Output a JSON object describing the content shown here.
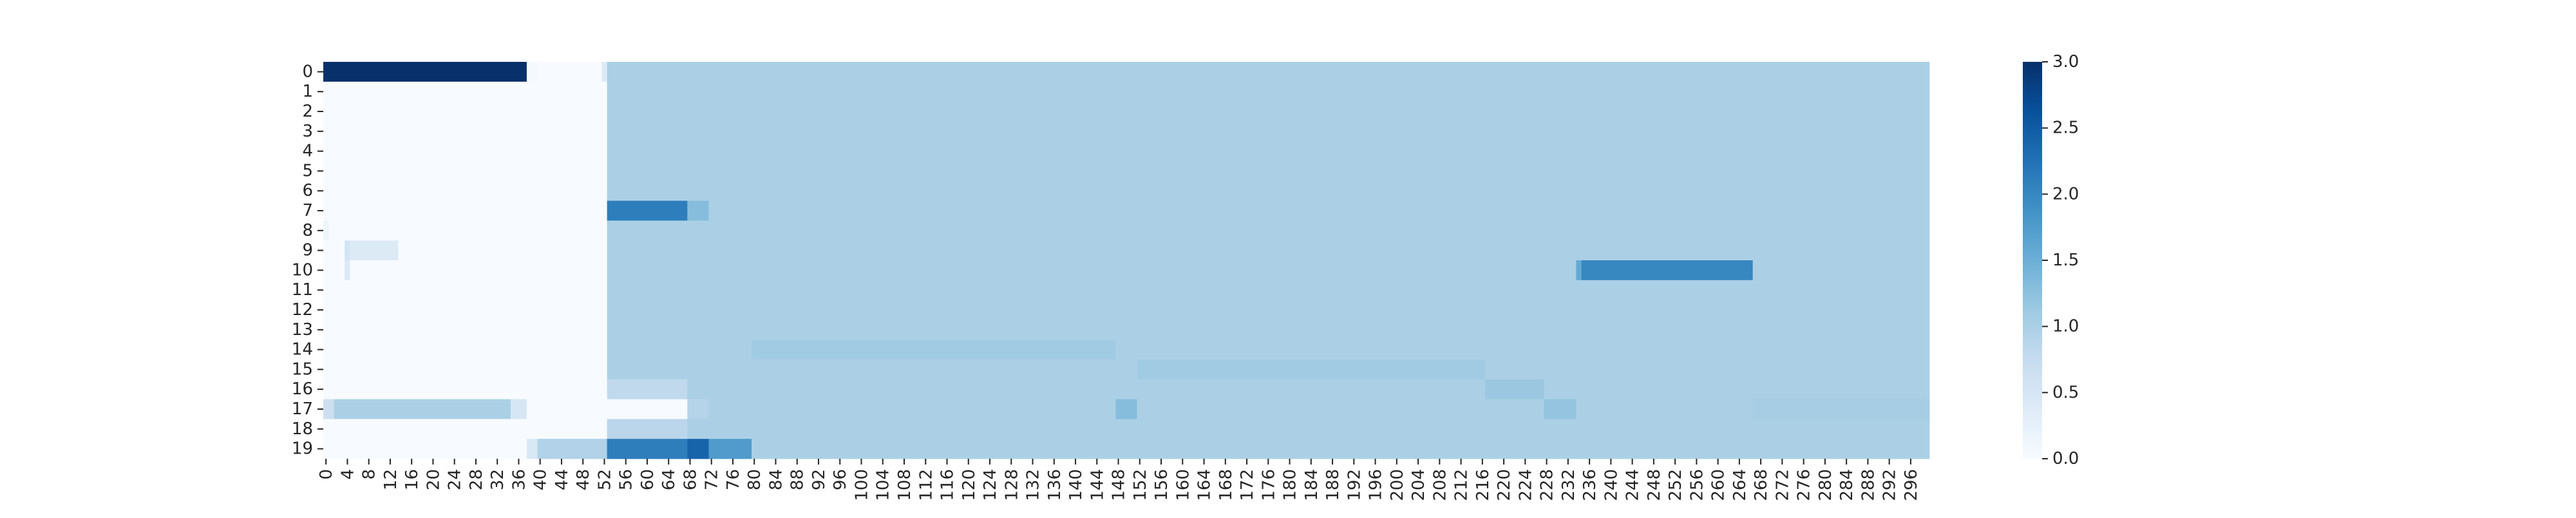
{
  "chart_data": {
    "type": "heatmap",
    "title": "",
    "xlabel": "",
    "ylabel": "",
    "rows": 20,
    "cols": 300,
    "y_tick_labels": [
      "0",
      "1",
      "2",
      "3",
      "4",
      "5",
      "6",
      "7",
      "8",
      "9",
      "10",
      "11",
      "12",
      "13",
      "14",
      "15",
      "16",
      "17",
      "18",
      "19"
    ],
    "x_tick_labels": [
      "0",
      "4",
      "8",
      "12",
      "16",
      "20",
      "24",
      "28",
      "32",
      "36",
      "40",
      "44",
      "48",
      "52",
      "56",
      "60",
      "64",
      "68",
      "72",
      "76",
      "80",
      "84",
      "88",
      "92",
      "96",
      "100",
      "104",
      "108",
      "112",
      "116",
      "120",
      "124",
      "128",
      "132",
      "136",
      "140",
      "144",
      "148",
      "152",
      "156",
      "160",
      "164",
      "168",
      "172",
      "176",
      "180",
      "184",
      "188",
      "192",
      "196",
      "200",
      "204",
      "208",
      "212",
      "216",
      "220",
      "224",
      "228",
      "232",
      "236",
      "240",
      "244",
      "248",
      "252",
      "256",
      "260",
      "264",
      "268",
      "272",
      "276",
      "280",
      "284",
      "288",
      "292",
      "296"
    ],
    "colorbar": {
      "min": 0.0,
      "max": 3.0,
      "tick_labels": [
        "0.0",
        "0.5",
        "1.0",
        "1.5",
        "2.0",
        "2.5",
        "3.0"
      ],
      "tick_values": [
        0.0,
        0.5,
        1.0,
        1.5,
        2.0,
        2.5,
        3.0
      ],
      "colormap": "Blues",
      "color_stops": [
        "#f7fbff",
        "#deebf7",
        "#c6dbef",
        "#9ecae1",
        "#6baed6",
        "#4292c6",
        "#2171b5",
        "#08519c",
        "#08306b"
      ]
    },
    "background_value": 1.0,
    "regions": [
      {
        "rows": [
          0,
          19
        ],
        "cols": [
          0,
          52
        ],
        "value": 0.0
      },
      {
        "rows": [
          0,
          0
        ],
        "cols": [
          0,
          37
        ],
        "value": 3.0
      },
      {
        "rows": [
          0,
          0
        ],
        "cols": [
          38,
          39
        ],
        "value": 0.05
      },
      {
        "rows": [
          0,
          0
        ],
        "cols": [
          52,
          52
        ],
        "value": 0.4
      },
      {
        "rows": [
          7,
          7
        ],
        "cols": [
          53,
          67
        ],
        "value": 2.1
      },
      {
        "rows": [
          7,
          7
        ],
        "cols": [
          68,
          71
        ],
        "value": 1.3
      },
      {
        "rows": [
          8,
          8
        ],
        "cols": [
          0,
          0
        ],
        "value": 0.15
      },
      {
        "rows": [
          9,
          9
        ],
        "cols": [
          4,
          4
        ],
        "value": 0.55
      },
      {
        "rows": [
          9,
          9
        ],
        "cols": [
          5,
          13
        ],
        "value": 0.4
      },
      {
        "rows": [
          10,
          10
        ],
        "cols": [
          4,
          4
        ],
        "value": 0.4
      },
      {
        "rows": [
          10,
          10
        ],
        "cols": [
          234,
          234
        ],
        "value": 1.55
      },
      {
        "rows": [
          10,
          10
        ],
        "cols": [
          235,
          266
        ],
        "value": 2.0
      },
      {
        "rows": [
          14,
          14
        ],
        "cols": [
          80,
          147
        ],
        "value": 1.1
      },
      {
        "rows": [
          15,
          15
        ],
        "cols": [
          152,
          216
        ],
        "value": 1.1
      },
      {
        "rows": [
          16,
          16
        ],
        "cols": [
          53,
          67
        ],
        "value": 0.8
      },
      {
        "rows": [
          16,
          16
        ],
        "cols": [
          217,
          227
        ],
        "value": 1.15
      },
      {
        "rows": [
          17,
          17
        ],
        "cols": [
          0,
          1
        ],
        "value": 0.65
      },
      {
        "rows": [
          17,
          17
        ],
        "cols": [
          2,
          34
        ],
        "value": 1.0
      },
      {
        "rows": [
          17,
          17
        ],
        "cols": [
          35,
          37
        ],
        "value": 0.5
      },
      {
        "rows": [
          17,
          17
        ],
        "cols": [
          53,
          67
        ],
        "value": 0.0
      },
      {
        "rows": [
          17,
          17
        ],
        "cols": [
          68,
          71
        ],
        "value": 0.9
      },
      {
        "rows": [
          17,
          17
        ],
        "cols": [
          148,
          151
        ],
        "value": 1.3
      },
      {
        "rows": [
          17,
          17
        ],
        "cols": [
          228,
          233
        ],
        "value": 1.2
      },
      {
        "rows": [
          17,
          17
        ],
        "cols": [
          267,
          299
        ],
        "value": 1.05
      },
      {
        "rows": [
          18,
          18
        ],
        "cols": [
          53,
          67
        ],
        "value": 0.85
      },
      {
        "rows": [
          19,
          19
        ],
        "cols": [
          38,
          39
        ],
        "value": 0.45
      },
      {
        "rows": [
          19,
          19
        ],
        "cols": [
          40,
          52
        ],
        "value": 0.95
      },
      {
        "rows": [
          19,
          19
        ],
        "cols": [
          53,
          67
        ],
        "value": 2.1
      },
      {
        "rows": [
          19,
          19
        ],
        "cols": [
          68,
          71
        ],
        "value": 2.4
      },
      {
        "rows": [
          19,
          19
        ],
        "cols": [
          72,
          79
        ],
        "value": 1.75
      }
    ]
  }
}
